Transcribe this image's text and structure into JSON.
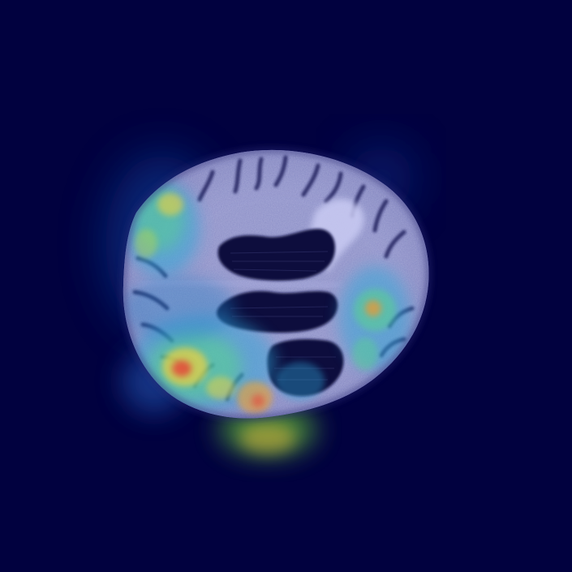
{
  "image": {
    "description_kind": "axial brain CT slice with heatmap overlay",
    "colors": {
      "background": "#01013f",
      "brain_tissue": "#8c8fc4",
      "ventricle_dark": "#0c0c3c",
      "bright_lesion": "#c7c9f2",
      "heat_low": "#2da8d8",
      "heat_mid": "#59d48c",
      "heat_high": "#f0d23c",
      "heat_peak": "#e3473a"
    }
  }
}
